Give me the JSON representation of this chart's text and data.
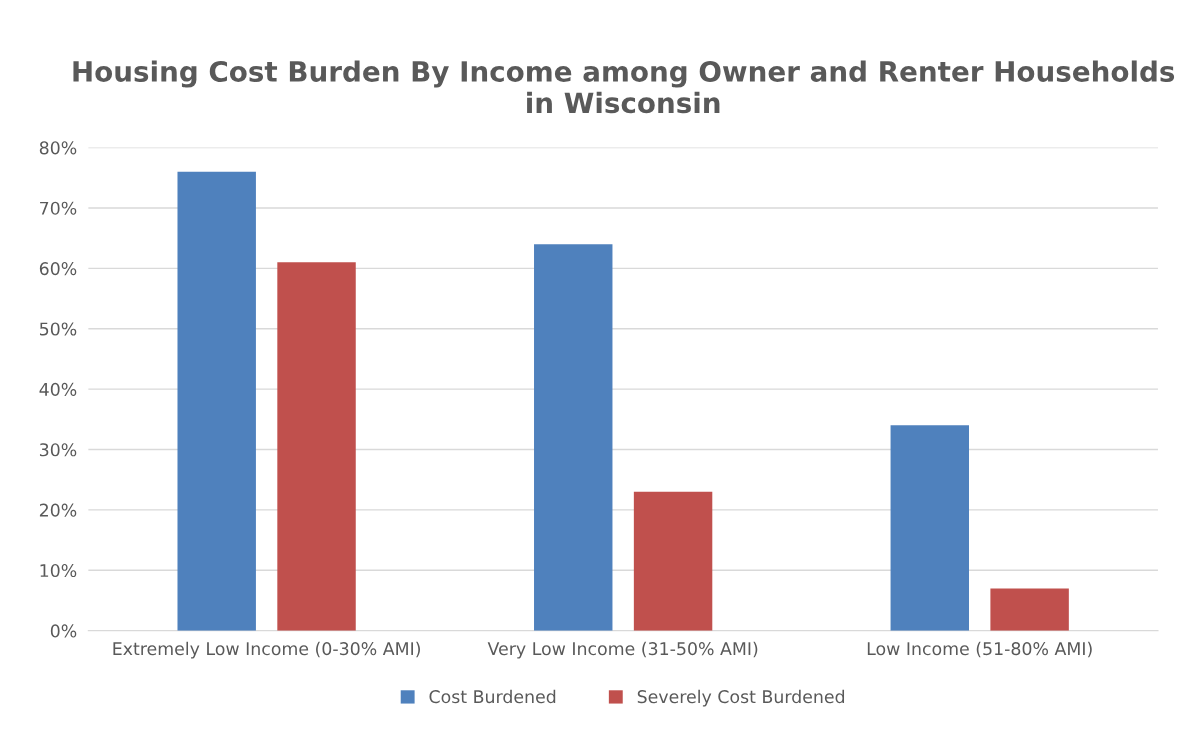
{
  "chart_data": {
    "type": "bar",
    "title": "Housing Cost Burden By Income among Owner and Renter Households in Wisconsin",
    "categories": [
      "Extremely Low Income (0-30% AMI)",
      "Very Low Income (31-50% AMI)",
      "Low Income (51-80% AMI)"
    ],
    "series": [
      {
        "name": "Cost Burdened",
        "color": "#4f81bd",
        "values": [
          76,
          64,
          34
        ]
      },
      {
        "name": "Severely Cost Burdened",
        "color": "#c0504d",
        "values": [
          61,
          23,
          7
        ]
      }
    ],
    "ylim": [
      0,
      80
    ],
    "yticks": [
      {
        "value": 0,
        "label": "0%"
      },
      {
        "value": 10,
        "label": "10%"
      },
      {
        "value": 20,
        "label": "20%"
      },
      {
        "value": 30,
        "label": "30%"
      },
      {
        "value": 40,
        "label": "40%"
      },
      {
        "value": 50,
        "label": "50%"
      },
      {
        "value": 60,
        "label": "60%"
      },
      {
        "value": 70,
        "label": "70%"
      },
      {
        "value": 80,
        "label": "80%"
      }
    ],
    "grid": "y",
    "legend": "bottom"
  }
}
